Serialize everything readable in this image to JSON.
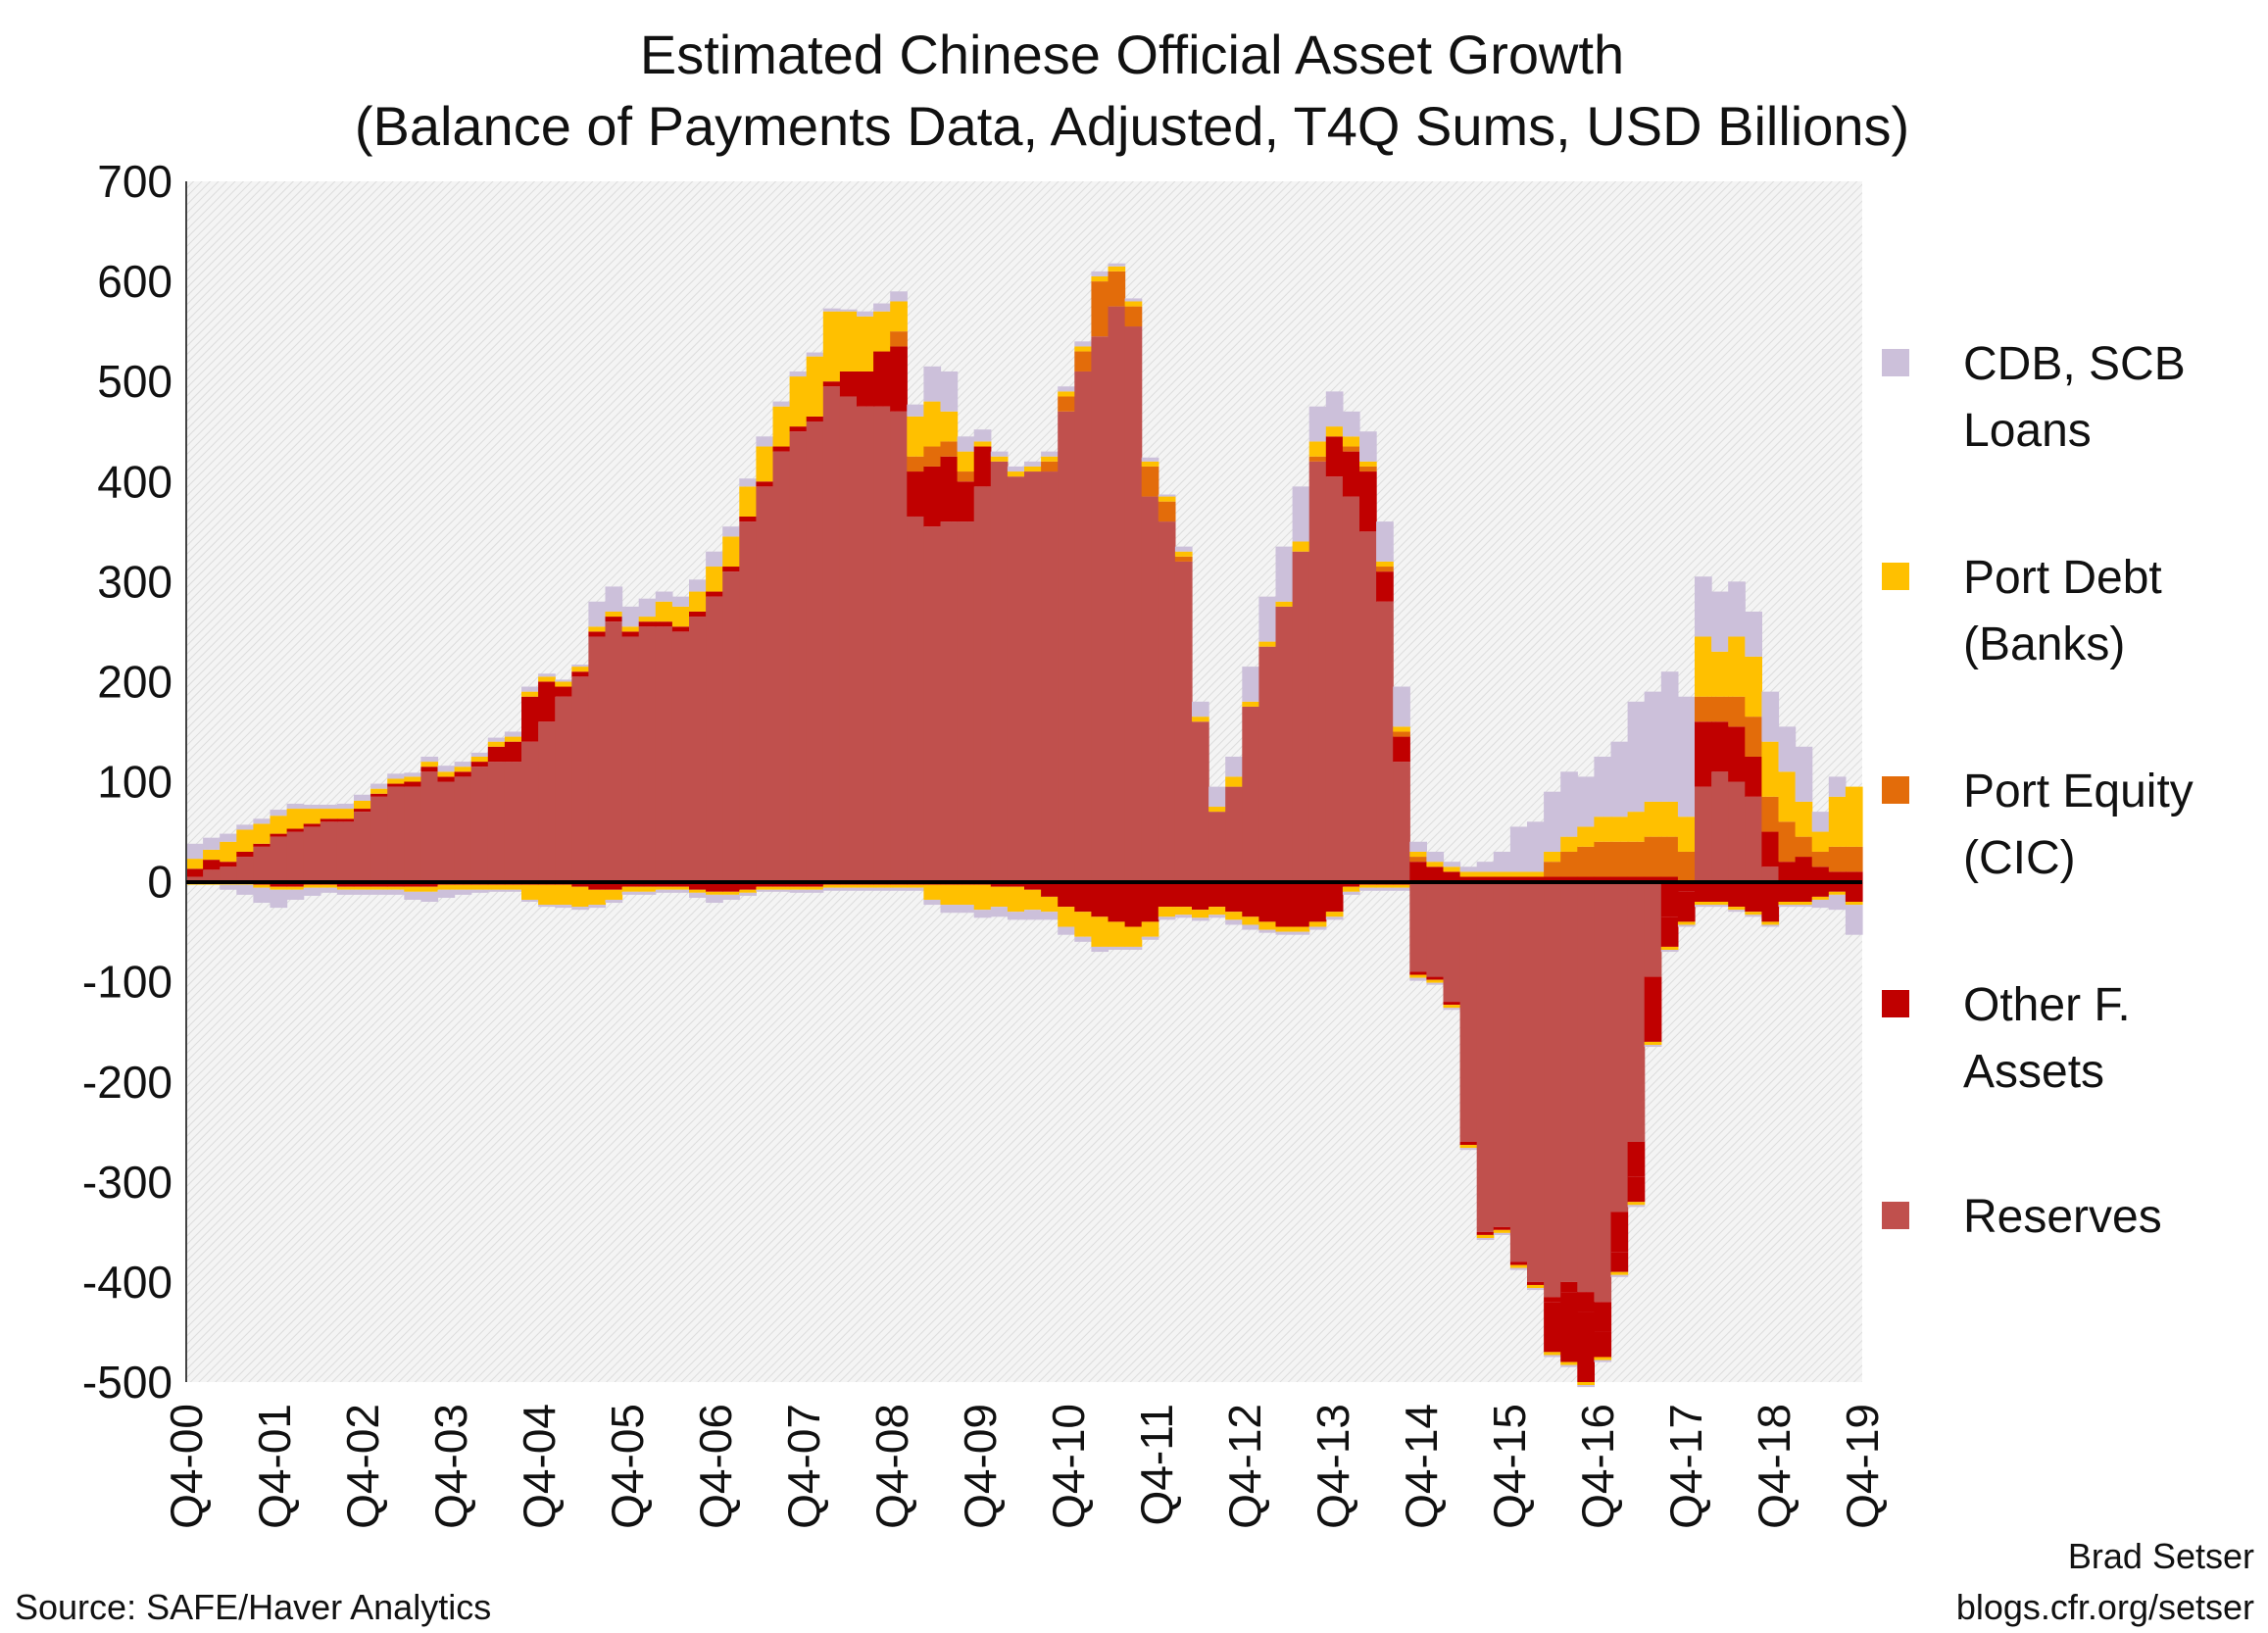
{
  "chart_data": {
    "type": "bar",
    "stacked": true,
    "title": "Estimated Chinese Official Asset Growth",
    "subtitle": "(Balance of Payments Data, Adjusted, T4Q Sums, USD Billions)",
    "xlabel": "",
    "ylabel": "",
    "ylim": [
      -500,
      700
    ],
    "yticks": [
      "700",
      "600",
      "500",
      "400",
      "300",
      "200",
      "100",
      "0",
      "-100",
      "-200",
      "-300",
      "-400",
      "-500"
    ],
    "xtick_labels": [
      "Q4-00",
      "Q4-01",
      "Q4-02",
      "Q4-03",
      "Q4-04",
      "Q4-05",
      "Q4-06",
      "Q4-07",
      "Q4-08",
      "Q4-09",
      "Q4-10",
      "Q4-11",
      "Q4-12",
      "Q4-13",
      "Q4-14",
      "Q4-15",
      "Q4-16",
      "Q4-17",
      "Q4-18",
      "Q4-19"
    ],
    "legend_position": "right",
    "colors": {
      "reserves": "#c0504d",
      "other": "#c00000",
      "port_equity": "#e36c0a",
      "port_debt": "#ffc000",
      "cdb": "#ccc0da"
    },
    "series": [
      {
        "key": "cdb",
        "name": "CDB, SCB Loans",
        "values": [
          15,
          12,
          8,
          5,
          5,
          6,
          5,
          4,
          4,
          5,
          6,
          5,
          5,
          4,
          5,
          6,
          5,
          4,
          4,
          5,
          5,
          3,
          2,
          2,
          25,
          25,
          20,
          18,
          10,
          10,
          12,
          15,
          10,
          8,
          10,
          5,
          5,
          4,
          3,
          2,
          5,
          8,
          10,
          12,
          35,
          40,
          15,
          12,
          5,
          5,
          5,
          5,
          5,
          5,
          5,
          3,
          3,
          4,
          2,
          5,
          15,
          20,
          20,
          35,
          45,
          55,
          55,
          35,
          35,
          25,
          30,
          40,
          40,
          10,
          10,
          5,
          5,
          10,
          20,
          45,
          50,
          60,
          65,
          50,
          60,
          75,
          110,
          110,
          130,
          120,
          60,
          60,
          55,
          45,
          50,
          45,
          55,
          20,
          20,
          0
        ],
        "neg": [
          0,
          0,
          -5,
          -10,
          -15,
          -18,
          -10,
          -8,
          -5,
          -5,
          -5,
          -5,
          -5,
          -8,
          -10,
          -8,
          -5,
          -3,
          -2,
          -2,
          -2,
          -2,
          -3,
          -3,
          -3,
          -3,
          -3,
          -3,
          -3,
          -3,
          -5,
          -8,
          -5,
          -3,
          -2,
          -2,
          -3,
          -3,
          -3,
          -3,
          -3,
          -3,
          -3,
          -3,
          -5,
          -8,
          -8,
          -8,
          -10,
          -8,
          -10,
          -8,
          -8,
          -5,
          -5,
          -3,
          -3,
          -3,
          -3,
          -3,
          -3,
          -3,
          -5,
          -5,
          -3,
          -3,
          -3,
          -3,
          -3,
          -3,
          -3,
          -3,
          -3,
          -3,
          -2,
          -2,
          -2,
          -2,
          -2,
          -2,
          -2,
          -2,
          -2,
          -2,
          -2,
          -2,
          -2,
          -2,
          -2,
          -2,
          -2,
          -2,
          -2,
          -2,
          -2,
          -2,
          -2,
          -8,
          -15,
          -30
        ]
      },
      {
        "key": "port_debt",
        "name": "Port Debt (Banks)",
        "values": [
          10,
          10,
          20,
          22,
          20,
          18,
          20,
          15,
          10,
          10,
          8,
          5,
          5,
          5,
          5,
          5,
          5,
          5,
          5,
          5,
          5,
          5,
          5,
          5,
          5,
          5,
          5,
          5,
          20,
          20,
          20,
          25,
          30,
          30,
          35,
          40,
          50,
          60,
          70,
          60,
          55,
          40,
          30,
          40,
          45,
          30,
          20,
          5,
          5,
          5,
          5,
          5,
          5,
          5,
          5,
          5,
          5,
          5,
          5,
          5,
          5,
          5,
          10,
          5,
          5,
          5,
          10,
          15,
          10,
          10,
          5,
          5,
          5,
          5,
          5,
          5,
          5,
          5,
          5,
          5,
          5,
          10,
          15,
          20,
          25,
          25,
          30,
          35,
          35,
          35,
          60,
          45,
          60,
          60,
          55,
          50,
          35,
          20,
          50,
          60
        ],
        "neg": [
          -3,
          -3,
          -3,
          -3,
          -3,
          -3,
          -3,
          -3,
          -3,
          -3,
          -3,
          -3,
          -3,
          -5,
          -5,
          -5,
          -5,
          -5,
          -5,
          -5,
          -15,
          -20,
          -20,
          -20,
          -15,
          -10,
          -5,
          -5,
          -3,
          -3,
          -3,
          -3,
          -3,
          -3,
          -3,
          -3,
          -3,
          -3,
          -3,
          -3,
          -3,
          -3,
          -3,
          -3,
          -15,
          -20,
          -20,
          -25,
          -20,
          -25,
          -20,
          -15,
          -20,
          -25,
          -30,
          -25,
          -20,
          -15,
          -10,
          -8,
          -8,
          -8,
          -8,
          -8,
          -8,
          -5,
          -5,
          -5,
          -5,
          -5,
          -3,
          -3,
          -3,
          -3,
          -3,
          -3,
          -3,
          -3,
          -3,
          -3,
          -3,
          -3,
          -3,
          -3,
          -3,
          -3,
          -3,
          -3,
          -3,
          -3,
          -3,
          -3,
          -3,
          -3,
          -3,
          -3,
          -3,
          -3,
          -3,
          -3
        ]
      },
      {
        "key": "port_equity",
        "name": "Port Equity (CIC)",
        "values": [
          0,
          0,
          0,
          0,
          0,
          0,
          0,
          0,
          0,
          0,
          0,
          0,
          0,
          0,
          0,
          0,
          0,
          0,
          0,
          0,
          0,
          0,
          0,
          0,
          0,
          0,
          0,
          0,
          0,
          0,
          0,
          0,
          0,
          0,
          0,
          0,
          0,
          0,
          0,
          0,
          0,
          0,
          15,
          15,
          20,
          15,
          10,
          0,
          0,
          0,
          0,
          10,
          15,
          20,
          55,
          35,
          20,
          30,
          20,
          5,
          0,
          0,
          0,
          0,
          0,
          0,
          0,
          5,
          0,
          5,
          5,
          5,
          5,
          5,
          0,
          0,
          0,
          0,
          0,
          0,
          0,
          15,
          25,
          30,
          35,
          35,
          35,
          40,
          40,
          30,
          25,
          25,
          30,
          40,
          35,
          40,
          20,
          15,
          25,
          25
        ],
        "neg": []
      },
      {
        "key": "other",
        "name": "Other F. Assets",
        "values": [
          8,
          10,
          5,
          5,
          3,
          3,
          3,
          3,
          3,
          3,
          3,
          3,
          3,
          5,
          5,
          5,
          5,
          5,
          15,
          20,
          45,
          40,
          10,
          5,
          5,
          5,
          5,
          5,
          5,
          5,
          5,
          5,
          5,
          5,
          5,
          5,
          5,
          5,
          5,
          25,
          35,
          55,
          65,
          45,
          60,
          65,
          40,
          40,
          0,
          0,
          0,
          0,
          0,
          0,
          0,
          0,
          0,
          0,
          0,
          0,
          0,
          0,
          0,
          0,
          0,
          0,
          0,
          0,
          40,
          45,
          60,
          30,
          25,
          20,
          15,
          10,
          5,
          5,
          5,
          5,
          5,
          5,
          5,
          5,
          5,
          5,
          5,
          5,
          5,
          0,
          65,
          50,
          55,
          40,
          35,
          20,
          25,
          15,
          10,
          10
        ],
        "neg": [
          0,
          0,
          0,
          0,
          -3,
          -5,
          -5,
          -3,
          -3,
          -5,
          -5,
          -5,
          -5,
          -5,
          -5,
          -3,
          -3,
          -3,
          -3,
          -3,
          -3,
          -3,
          -3,
          -5,
          -8,
          -8,
          -5,
          -5,
          -5,
          -5,
          -8,
          -10,
          -10,
          -8,
          -5,
          -5,
          -5,
          -5,
          -3,
          -3,
          -3,
          -3,
          -3,
          -3,
          -3,
          -3,
          -3,
          -3,
          -5,
          -5,
          -8,
          -15,
          -25,
          -30,
          -35,
          -40,
          -45,
          -40,
          -25,
          -25,
          -28,
          -25,
          -30,
          -35,
          -40,
          -45,
          -45,
          -40,
          -30,
          -5,
          -3,
          -3,
          -3,
          -3,
          -3,
          -3,
          -3,
          -3,
          -3,
          -3,
          -3,
          -5,
          -10,
          -20,
          -30,
          -40,
          -35,
          -45,
          -35,
          -10,
          -20,
          -20,
          -25,
          -30,
          -40,
          -20,
          -20,
          -15,
          -10,
          -20
        ],
        "neg_deep": [
          0,
          0,
          0,
          0,
          0,
          0,
          0,
          0,
          0,
          0,
          0,
          0,
          0,
          0,
          0,
          0,
          0,
          0,
          0,
          0,
          0,
          0,
          0,
          0,
          0,
          0,
          0,
          0,
          0,
          0,
          0,
          0,
          0,
          0,
          0,
          0,
          0,
          0,
          0,
          0,
          0,
          0,
          0,
          0,
          0,
          0,
          0,
          0,
          0,
          0,
          0,
          0,
          0,
          0,
          0,
          0,
          0,
          0,
          0,
          0,
          0,
          0,
          0,
          0,
          0,
          0,
          0,
          0,
          0,
          0,
          0,
          0,
          0,
          0,
          0,
          0,
          0,
          0,
          0,
          0,
          0,
          -50,
          -70,
          -70,
          -25,
          -20,
          -25,
          -20,
          -30,
          -30,
          0,
          0,
          0,
          0,
          0,
          0,
          0,
          0,
          0,
          0
        ]
      },
      {
        "key": "reserves",
        "name": "Reserves",
        "values": [
          5,
          12,
          15,
          25,
          35,
          45,
          50,
          55,
          60,
          60,
          70,
          85,
          95,
          95,
          110,
          100,
          105,
          115,
          120,
          120,
          140,
          160,
          185,
          205,
          245,
          260,
          245,
          255,
          255,
          250,
          265,
          285,
          310,
          360,
          395,
          430,
          450,
          460,
          495,
          485,
          475,
          475,
          470,
          365,
          355,
          360,
          360,
          395,
          420,
          405,
          410,
          410,
          470,
          510,
          545,
          575,
          555,
          385,
          360,
          320,
          160,
          70,
          95,
          175,
          235,
          275,
          330,
          420,
          405,
          385,
          350,
          280,
          120,
          0,
          0,
          0,
          0,
          0,
          0,
          0,
          0,
          0,
          0,
          0,
          0,
          0,
          0,
          0,
          0,
          0,
          95,
          110,
          100,
          85,
          15,
          0,
          0,
          0,
          0,
          0
        ],
        "neg": [
          0,
          0,
          0,
          0,
          0,
          0,
          0,
          0,
          0,
          0,
          0,
          0,
          0,
          0,
          0,
          0,
          0,
          0,
          0,
          0,
          0,
          0,
          0,
          0,
          0,
          0,
          0,
          0,
          0,
          0,
          0,
          0,
          0,
          0,
          0,
          0,
          0,
          0,
          0,
          0,
          0,
          0,
          0,
          0,
          0,
          0,
          0,
          0,
          0,
          0,
          0,
          0,
          0,
          0,
          0,
          0,
          0,
          0,
          0,
          0,
          0,
          0,
          0,
          0,
          0,
          0,
          0,
          0,
          0,
          0,
          0,
          0,
          0,
          -90,
          -95,
          -120,
          -260,
          -350,
          -345,
          -380,
          -400,
          -415,
          -400,
          -410,
          -420,
          -330,
          -260,
          -95,
          0,
          0,
          0,
          0,
          0,
          0,
          0,
          0,
          0,
          0,
          0,
          0
        ]
      }
    ],
    "legend_order": [
      "cdb",
      "port_debt",
      "port_equity",
      "other",
      "reserves"
    ],
    "legend_lines": {
      "cdb": [
        "CDB, SCB",
        "Loans"
      ],
      "port_debt": [
        "Port Debt",
        "(Banks)"
      ],
      "port_equity": [
        "Port Equity",
        "(CIC)"
      ],
      "other": [
        "Other F.",
        "Assets"
      ],
      "reserves": [
        "Reserves"
      ]
    }
  },
  "footer": {
    "source": "Source: SAFE/Haver Analytics",
    "author": "Brad Setser",
    "url": "blogs.cfr.org/setser"
  }
}
